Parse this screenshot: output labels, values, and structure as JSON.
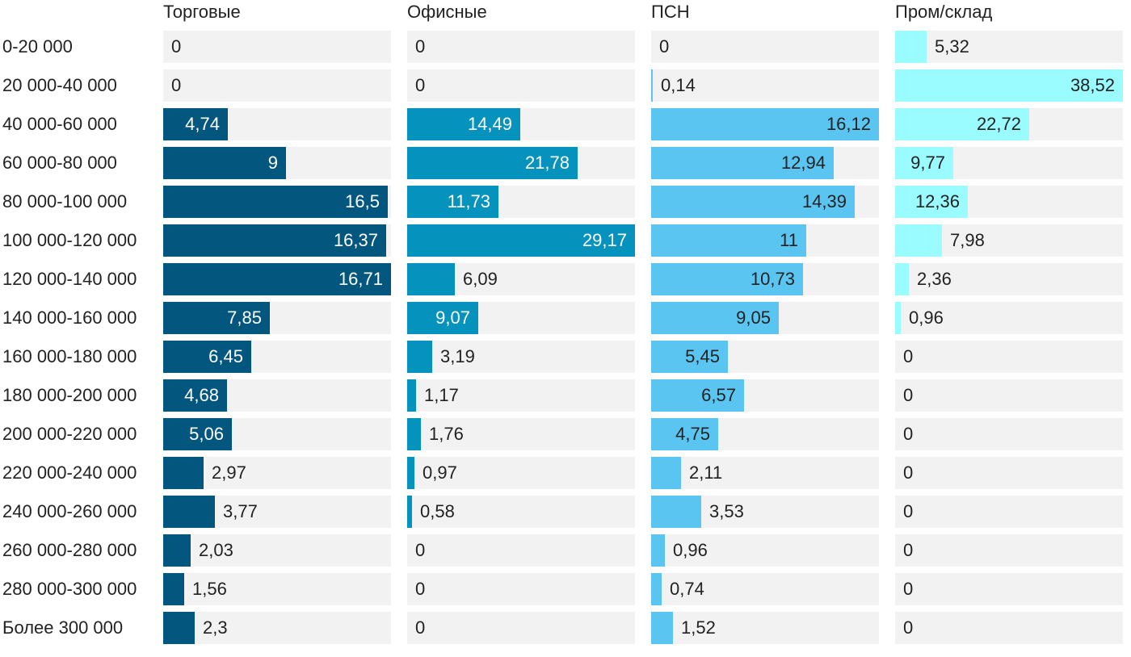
{
  "chart_data": {
    "type": "bar",
    "orientation": "horizontal",
    "layout": "small-multiples",
    "categories": [
      "0-20 000",
      "20 000-40 000",
      "40 000-60 000",
      "60 000-80 000",
      "80 000-100 000",
      "100 000-120 000",
      "120 000-140 000",
      "140 000-160 000",
      "160 000-180 000",
      "180 000-200 000",
      "200 000-220 000",
      "220 000-240 000",
      "240 000-260 000",
      "260 000-280 000",
      "280 000-300 000",
      "Более 300 000"
    ],
    "series": [
      {
        "name": "Торговые",
        "color": "#03577f",
        "max": 16.71,
        "values": [
          0,
          0,
          4.74,
          9,
          16.5,
          16.37,
          16.71,
          7.85,
          6.45,
          4.68,
          5.06,
          2.97,
          3.77,
          2.03,
          1.56,
          2.3
        ],
        "labels": [
          "0",
          "0",
          "4,74",
          "9",
          "16,5",
          "16,37",
          "16,71",
          "7,85",
          "6,45",
          "4,68",
          "5,06",
          "2,97",
          "3,77",
          "2,03",
          "1,56",
          "2,3"
        ]
      },
      {
        "name": "Офисные",
        "color": "#0592bd",
        "max": 29.17,
        "values": [
          0,
          0,
          14.49,
          21.78,
          11.73,
          29.17,
          6.09,
          9.07,
          3.19,
          1.17,
          1.76,
          0.97,
          0.58,
          0,
          0,
          0
        ],
        "labels": [
          "0",
          "0",
          "14,49",
          "21,78",
          "11,73",
          "29,17",
          "6,09",
          "9,07",
          "3,19",
          "1,17",
          "1,76",
          "0,97",
          "0,58",
          "0",
          "0",
          "0"
        ]
      },
      {
        "name": "ПСН",
        "color": "#5bc5f2",
        "max": 16.12,
        "values": [
          0,
          0.14,
          16.12,
          12.94,
          14.39,
          11,
          10.73,
          9.05,
          5.45,
          6.57,
          4.75,
          2.11,
          3.53,
          0.96,
          0.74,
          1.52
        ],
        "labels": [
          "0",
          "0,14",
          "16,12",
          "12,94",
          "14,39",
          "11",
          "10,73",
          "9,05",
          "5,45",
          "6,57",
          "4,75",
          "2,11",
          "3,53",
          "0,96",
          "0,74",
          "1,52"
        ]
      },
      {
        "name": "Пром/склад",
        "color": "#9bfcff",
        "max": 38.52,
        "values": [
          5.32,
          38.52,
          22.72,
          9.77,
          12.36,
          7.98,
          2.36,
          0.96,
          0,
          0,
          0,
          0,
          0,
          0,
          0,
          0
        ],
        "labels": [
          "5,32",
          "38,52",
          "22,72",
          "9,77",
          "12,36",
          "7,98",
          "2,36",
          "0,96",
          "0",
          "0",
          "0",
          "0",
          "0",
          "0",
          "0",
          "0"
        ]
      }
    ],
    "grid": false,
    "legend": "none"
  }
}
